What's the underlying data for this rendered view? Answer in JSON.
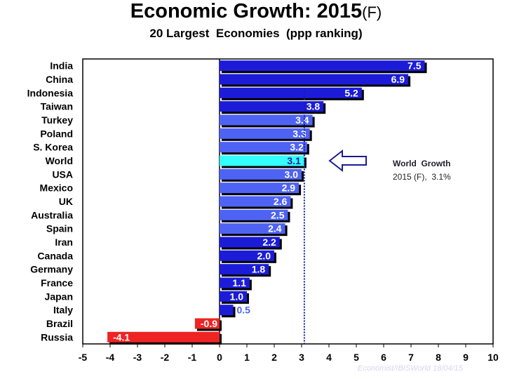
{
  "chart_data": {
    "type": "bar",
    "orientation": "horizontal",
    "title": "Economic Growth:",
    "title_year": "2015",
    "title_suffix": "(F)",
    "subtitle": "20 Largest  Economies  (ppp ranking)",
    "categories": [
      "India",
      "China",
      "Indonesia",
      "Taiwan",
      "Turkey",
      "Poland",
      "S. Korea",
      "World",
      "USA",
      "Mexico",
      "UK",
      "Australia",
      "Spain",
      "Iran",
      "Canada",
      "Germany",
      "France",
      "Japan",
      "Italy",
      "Brazil",
      "Russia"
    ],
    "values": [
      7.5,
      6.9,
      5.2,
      3.8,
      3.4,
      3.3,
      3.2,
      3.1,
      3.0,
      2.9,
      2.6,
      2.5,
      2.4,
      2.2,
      2.0,
      1.8,
      1.1,
      1.0,
      0.5,
      -0.9,
      -4.1
    ],
    "value_labels": [
      "7.5",
      "6.9",
      "5.2",
      "3.8",
      "3.4",
      "3.3",
      "3.2",
      "3.1",
      "3.0",
      "2.9",
      "2.6",
      "2.5",
      "2.4",
      "2.2",
      "2.0",
      "1.8",
      "1.1",
      "1.0",
      "0.5",
      "-0.9",
      "-4.1"
    ],
    "xlim": [
      -5,
      10
    ],
    "xticks": [
      "-5",
      "-4",
      "-3",
      "-2",
      "-1",
      "0",
      "1",
      "2",
      "3",
      "4",
      "5",
      "6",
      "7",
      "8",
      "9",
      "10"
    ],
    "reference_line": {
      "value": 3.1,
      "style": "dotted"
    },
    "annotation": {
      "line1": "World  Growth",
      "line2": "2015 (F),  3.1%"
    },
    "source": "Economist/IBISWorld  18/04/15",
    "grid": false,
    "legend": "none"
  },
  "colors": {
    "background": "#ffffff",
    "bar_dark_blue": "#1c1cd8",
    "bar_medium_blue": "#3b46ec",
    "bar_light_blue": "#4e63f4",
    "world_bar": "#33ffff",
    "negative_bar": "#ee2424",
    "shadow": "#000000",
    "reference_line": "#1a1a99",
    "arrow": "#1a1a99"
  }
}
